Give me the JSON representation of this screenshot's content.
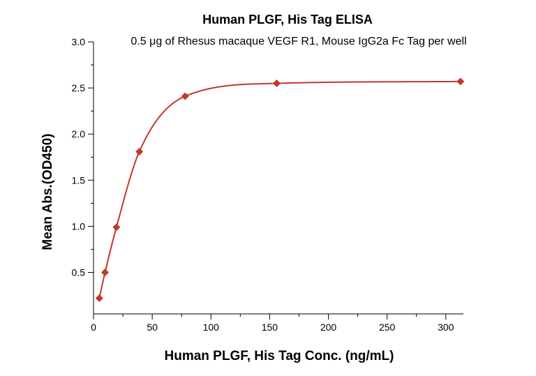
{
  "chart_data": {
    "type": "scatter",
    "title": "Human PLGF, His Tag ELISA",
    "subtitle": "0.5 μg of Rhesus macaque VEGF R1, Mouse IgG2a Fc Tag per well",
    "xlabel": "Human PLGF, His Tag Conc. (ng/mL)",
    "ylabel": "Mean Abs.(OD450)",
    "xlim": [
      0,
      315
    ],
    "ylim": [
      0.05,
      3.0
    ],
    "xticks": [
      0,
      50,
      100,
      150,
      200,
      250,
      300
    ],
    "yticks": [
      0.5,
      1.0,
      1.5,
      2.0,
      2.5,
      3.0
    ],
    "xtick_labels": [
      "0",
      "50",
      "100",
      "150",
      "200",
      "250",
      "300"
    ],
    "ytick_labels": [
      "0.5",
      "1.0",
      "1.5",
      "2.0",
      "2.5",
      "3.0"
    ],
    "grid": false,
    "color": "#c0392b",
    "series": [
      {
        "points": [
          {
            "x": 4.9,
            "y": 0.22
          },
          {
            "x": 9.8,
            "y": 0.5
          },
          {
            "x": 19.5,
            "y": 0.99
          },
          {
            "x": 39,
            "y": 1.81
          },
          {
            "x": 78,
            "y": 2.41
          },
          {
            "x": 156,
            "y": 2.55
          },
          {
            "x": 312.5,
            "y": 2.57
          }
        ],
        "fit_curve": true
      }
    ]
  }
}
